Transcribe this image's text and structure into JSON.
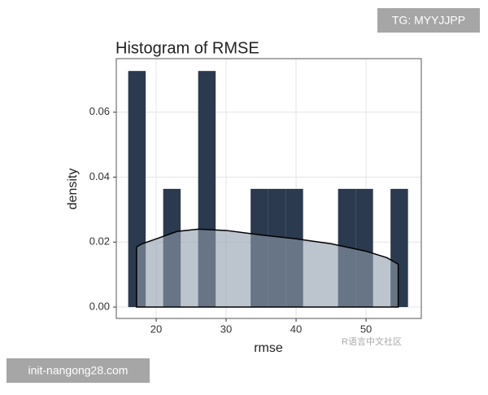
{
  "chart_data": {
    "type": "histogram",
    "title": "Histogram of RMSE",
    "x_label": "rmse",
    "y_label": "density",
    "bins": [
      16,
      18.5,
      21,
      23.5,
      26,
      28.5,
      31,
      33.5,
      36,
      38.5,
      41,
      43.5,
      46,
      48.5,
      51,
      53.5,
      56
    ],
    "values": [
      0.0727,
      0,
      0.0364,
      0,
      0.0727,
      0,
      0,
      0.0364,
      0.0364,
      0.0364,
      0,
      0,
      0.0364,
      0.0364,
      0,
      0.0364
    ],
    "color": "#2b3a4e",
    "density": {
      "x": [
        17.2,
        18,
        20,
        23,
        26,
        30,
        35,
        40,
        45,
        50,
        53,
        54.6
      ],
      "values": [
        0.0185,
        0.0195,
        0.021,
        0.0233,
        0.024,
        0.0236,
        0.0222,
        0.021,
        0.0195,
        0.0172,
        0.0152,
        0.0132
      ],
      "fill": "#8f9cab",
      "line_color": "#000000"
    },
    "xlim": [
      14.3,
      57.9
    ],
    "ylim": [
      -0.0035,
      0.0765
    ],
    "xticks": [
      20,
      30,
      40,
      50
    ],
    "yticks": [
      {
        "value": 0,
        "label": "0.00"
      },
      {
        "value": 0.02,
        "label": "0.02"
      },
      {
        "value": 0.04,
        "label": "0.04"
      },
      {
        "value": 0.06,
        "label": "0.06"
      }
    ],
    "grid": true
  },
  "overlays": {
    "top_right": "TG: MYYJJPP",
    "bottom_left": "init-nangong28.com",
    "watermark": "R语言中文社区"
  }
}
